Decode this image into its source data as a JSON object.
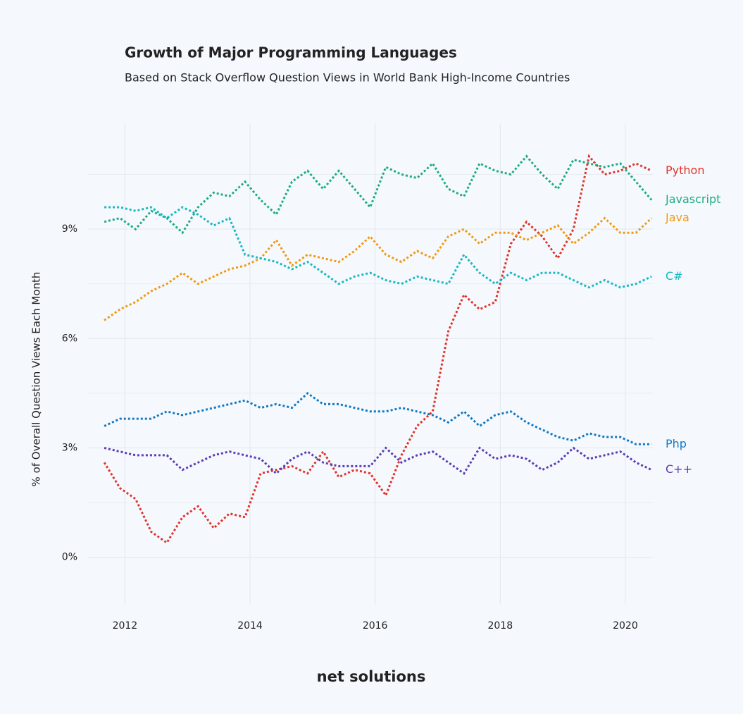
{
  "chart_data": {
    "type": "line",
    "title": "Growth of Major Programming Languages",
    "subtitle": "Based on Stack Overflow Question Views in World Bank High-Income Countries",
    "y_label": "% of Overall Question Views Each Month",
    "x": [
      2011.67,
      2011.92,
      2012.17,
      2012.42,
      2012.67,
      2012.92,
      2013.17,
      2013.42,
      2013.67,
      2013.92,
      2014.17,
      2014.42,
      2014.67,
      2014.92,
      2015.17,
      2015.42,
      2015.67,
      2015.92,
      2016.17,
      2016.42,
      2016.67,
      2016.92,
      2017.17,
      2017.42,
      2017.67,
      2017.92,
      2018.17,
      2018.42,
      2018.67,
      2018.92,
      2019.17,
      2019.42,
      2019.67,
      2019.92,
      2020.17,
      2020.42
    ],
    "series": [
      {
        "name": "Python",
        "color": "#e0342a",
        "values": [
          2.6,
          1.9,
          1.6,
          0.7,
          0.4,
          1.1,
          1.4,
          0.8,
          1.2,
          1.1,
          2.3,
          2.4,
          2.5,
          2.3,
          2.9,
          2.2,
          2.4,
          2.3,
          1.7,
          2.8,
          3.6,
          4.0,
          6.2,
          7.2,
          6.8,
          7.0,
          8.6,
          9.2,
          8.8,
          8.2,
          9.0,
          11.0,
          10.5,
          10.6,
          10.8,
          10.6
        ]
      },
      {
        "name": "Javascript",
        "color": "#1dab84",
        "values": [
          9.2,
          9.3,
          9.0,
          9.5,
          9.3,
          8.9,
          9.6,
          10.0,
          9.9,
          10.3,
          9.8,
          9.4,
          10.3,
          10.6,
          10.1,
          10.6,
          10.1,
          9.6,
          10.7,
          10.5,
          10.4,
          10.8,
          10.1,
          9.9,
          10.8,
          10.6,
          10.5,
          11.0,
          10.5,
          10.1,
          10.9,
          10.8,
          10.7,
          10.8,
          10.3,
          9.8
        ]
      },
      {
        "name": "Java",
        "color": "#f09a12",
        "values": [
          6.5,
          6.8,
          7.0,
          7.3,
          7.5,
          7.8,
          7.5,
          7.7,
          7.9,
          8.0,
          8.2,
          8.7,
          8.0,
          8.3,
          8.2,
          8.1,
          8.4,
          8.8,
          8.3,
          8.1,
          8.4,
          8.2,
          8.8,
          9.0,
          8.6,
          8.9,
          8.9,
          8.7,
          8.9,
          9.1,
          8.6,
          8.9,
          9.3,
          8.9,
          8.9,
          9.3
        ]
      },
      {
        "name": "C#",
        "color": "#19b8c4",
        "values": [
          9.6,
          9.6,
          9.5,
          9.6,
          9.3,
          9.6,
          9.4,
          9.1,
          9.3,
          8.3,
          8.2,
          8.1,
          7.9,
          8.1,
          7.8,
          7.5,
          7.7,
          7.8,
          7.6,
          7.5,
          7.7,
          7.6,
          7.5,
          8.3,
          7.8,
          7.5,
          7.8,
          7.6,
          7.8,
          7.8,
          7.6,
          7.4,
          7.6,
          7.4,
          7.5,
          7.7
        ]
      },
      {
        "name": "Php",
        "color": "#1478c0",
        "values": [
          3.6,
          3.8,
          3.8,
          3.8,
          4.0,
          3.9,
          4.0,
          4.1,
          4.2,
          4.3,
          4.1,
          4.2,
          4.1,
          4.5,
          4.2,
          4.2,
          4.1,
          4.0,
          4.0,
          4.1,
          4.0,
          3.9,
          3.7,
          4.0,
          3.6,
          3.9,
          4.0,
          3.7,
          3.5,
          3.3,
          3.2,
          3.4,
          3.3,
          3.3,
          3.1,
          3.1
        ]
      },
      {
        "name": "C++",
        "color": "#5a3db4",
        "values": [
          3.0,
          2.9,
          2.8,
          2.8,
          2.8,
          2.4,
          2.6,
          2.8,
          2.9,
          2.8,
          2.7,
          2.3,
          2.7,
          2.9,
          2.6,
          2.5,
          2.5,
          2.5,
          3.0,
          2.6,
          2.8,
          2.9,
          2.6,
          2.3,
          3.0,
          2.7,
          2.8,
          2.7,
          2.4,
          2.6,
          3.0,
          2.7,
          2.8,
          2.9,
          2.6,
          2.4
        ]
      }
    ],
    "xlim": [
      2011.41,
      2020.44
    ],
    "xticks": [
      2012,
      2014,
      2016,
      2018,
      2020
    ],
    "ylim": [
      -1.3,
      11.9
    ],
    "yticks": [
      {
        "value": 0,
        "label": "0%"
      },
      {
        "value": 3,
        "label": "3%"
      },
      {
        "value": 6,
        "label": "6%"
      },
      {
        "value": 9,
        "label": "9%"
      }
    ],
    "minor_yticks": [
      1.5,
      4.5,
      7.5,
      10.5
    ],
    "grid": true
  },
  "footer": "net solutions"
}
